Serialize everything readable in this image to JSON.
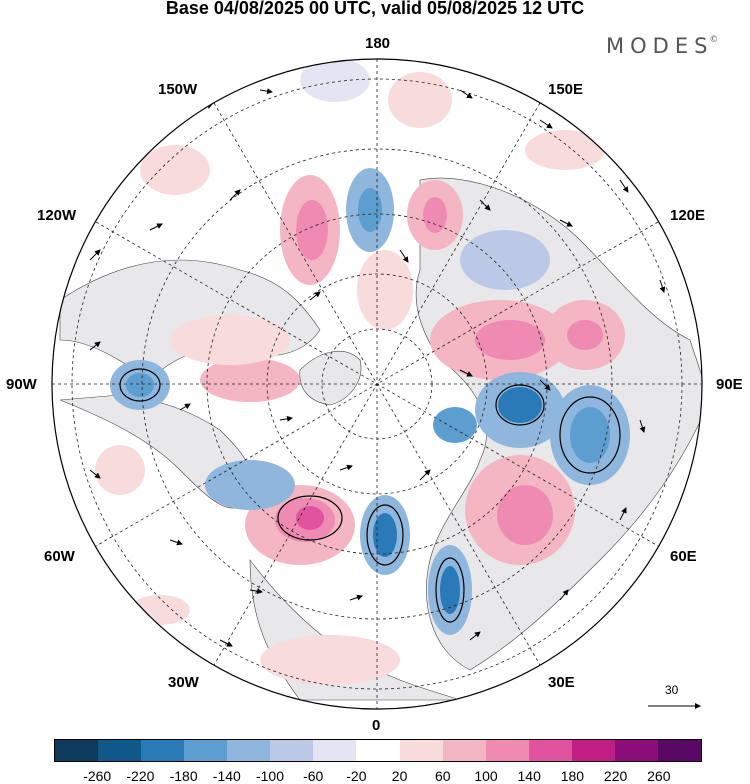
{
  "title": "Base 04/08/2025 00 UTC, valid 05/08/2025 12 UTC",
  "brand": "MODES",
  "brand_mark": "©",
  "lon_labels": {
    "top": "180",
    "bottom": "0",
    "left": "90W",
    "right": "90E",
    "upper_left_1": "150W",
    "upper_left_2": "120W",
    "lower_left_1": "60W",
    "lower_left_2": "30W",
    "upper_right_1": "150E",
    "upper_right_2": "120E",
    "lower_right_1": "60E",
    "lower_right_2": "30E"
  },
  "reference_vector": "30",
  "colorbar": {
    "colors": [
      "#0d3b5e",
      "#10578a",
      "#2a7ab8",
      "#5c9ecf",
      "#8fb6dc",
      "#bcc9e6",
      "#e4e4f3",
      "#ffffff",
      "#f8dcdc",
      "#f4b6c2",
      "#ef8bb2",
      "#e2539f",
      "#c01f86",
      "#8c0e7a",
      "#5a0866"
    ],
    "ticks": [
      "-260",
      "-220",
      "-180",
      "-140",
      "-100",
      "-60",
      "-20",
      "20",
      "60",
      "100",
      "140",
      "180",
      "220",
      "260"
    ]
  },
  "map": {
    "projection": "north-polar-stereographic",
    "field": "geopotential height anomaly with wind vectors"
  }
}
